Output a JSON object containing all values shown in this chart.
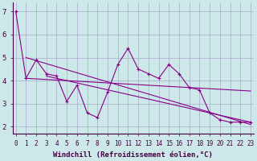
{
  "xlabel": "Windchill (Refroidissement éolien,°C)",
  "background_color": "#cce8e8",
  "grid_color": "#aaaacc",
  "line_color": "#880088",
  "hours": [
    0,
    1,
    2,
    3,
    4,
    5,
    6,
    7,
    8,
    9,
    10,
    11,
    12,
    13,
    14,
    15,
    16,
    17,
    18,
    19,
    20,
    21,
    22,
    23
  ],
  "main_line": [
    7.0,
    4.1,
    4.9,
    4.3,
    4.2,
    3.1,
    3.8,
    2.6,
    2.4,
    3.5,
    4.7,
    5.4,
    4.5,
    4.3,
    4.1,
    4.7,
    4.3,
    3.7,
    3.6,
    2.6,
    2.3,
    2.2,
    2.2,
    2.2
  ],
  "trend1_x": [
    1,
    23
  ],
  "trend1_y": [
    5.0,
    2.1
  ],
  "trend2_x": [
    1,
    23
  ],
  "trend2_y": [
    4.1,
    3.55
  ],
  "trend3_x": [
    3,
    23
  ],
  "trend3_y": [
    4.2,
    2.2
  ],
  "ylim": [
    1.7,
    7.4
  ],
  "xlim": [
    -0.3,
    23.3
  ],
  "xtick_fontsize": 5.5,
  "ytick_fontsize": 6.5,
  "xlabel_fontsize": 6.5
}
